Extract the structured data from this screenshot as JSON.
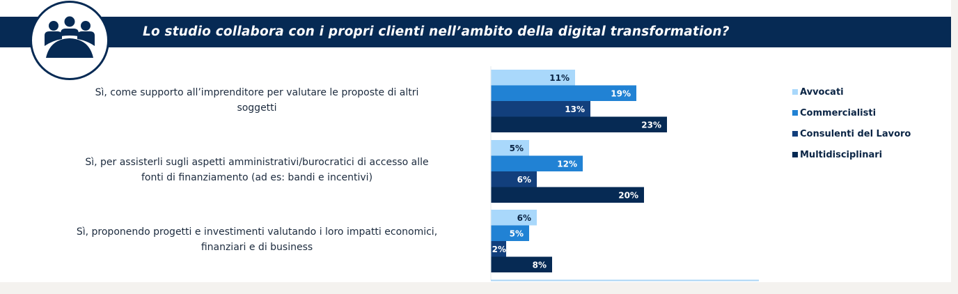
{
  "header": {
    "title": "Lo studio collabora con i propri clienti nell’ambito della digital transformation?",
    "icon": "meeting-people-icon"
  },
  "colors": {
    "header_bg": "#062a54",
    "axis": "#a9d4f5",
    "background": "#f4f2ef"
  },
  "chart_data": {
    "type": "bar",
    "orientation": "horizontal",
    "title": "Lo studio collabora con i propri clienti nell’ambito della digital transformation?",
    "xlabel": "",
    "ylabel": "",
    "unit": "%",
    "xlim": [
      0,
      35
    ],
    "grid": false,
    "legend_position": "right",
    "categories": [
      "Sì, come supporto all’imprenditore per valutare le proposte di altri soggetti",
      "Sì, per assisterli sugli aspetti amministrativi/burocratici di accesso alle fonti di finanziamento (ad es: bandi e incentivi)",
      "Sì, proponendo progetti e investimenti valutando i loro impatti economici, finanziari e di business"
    ],
    "category_lines": [
      [
        "Sì, come supporto all’imprenditore per valutare le proposte di altri",
        "soggetti"
      ],
      [
        "Sì, per assisterli sugli aspetti amministrativi/burocratici di accesso alle",
        "fonti di finanziamento (ad es: bandi e incentivi)"
      ],
      [
        "Sì, proponendo progetti e investimenti valutando i loro impatti economici,",
        "finanziari e di business"
      ]
    ],
    "series": [
      {
        "name": "Avvocati",
        "color": "#a9d8fb",
        "label_color": "#0b2545",
        "values": [
          11,
          5,
          6
        ]
      },
      {
        "name": "Commercialisti",
        "color": "#2182d4",
        "label_color": "#ffffff",
        "values": [
          19,
          12,
          5
        ]
      },
      {
        "name": "Consulenti del Lavoro",
        "color": "#123f7c",
        "label_color": "#ffffff",
        "values": [
          13,
          6,
          2
        ]
      },
      {
        "name": "Multidisciplinari",
        "color": "#062a54",
        "label_color": "#ffffff",
        "values": [
          23,
          20,
          8
        ]
      }
    ],
    "value_labels": [
      [
        "11%",
        "5%",
        "6%"
      ],
      [
        "19%",
        "12%",
        "5%"
      ],
      [
        "13%",
        "6%",
        "2%"
      ],
      [
        "23%",
        "20%",
        "8%"
      ]
    ]
  }
}
